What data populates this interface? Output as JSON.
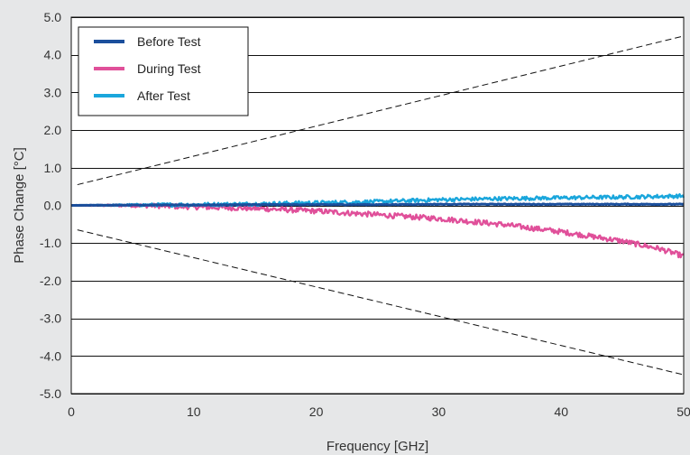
{
  "chart_data": {
    "type": "line",
    "title": "",
    "xlabel": "Frequency [GHz]",
    "ylabel": "Phase Change [°C]",
    "xlim": [
      0,
      50
    ],
    "ylim": [
      -5,
      5
    ],
    "x_ticks": [
      0,
      10,
      20,
      30,
      40,
      50
    ],
    "x_tick_labels": [
      "0",
      "10",
      "20",
      "30",
      "40",
      "50"
    ],
    "y_ticks": [
      5,
      4,
      3,
      2,
      1,
      0,
      -1,
      -2,
      -3,
      -4,
      -5
    ],
    "y_tick_labels": [
      "5.0",
      "4.0",
      "3.0",
      "2.0",
      "1.0",
      "0.0",
      "-1.0",
      "-2.0",
      "-3.0",
      "-4.0",
      "-5.0"
    ],
    "grid": "horizontal",
    "legend_position": "top-left",
    "series": [
      {
        "name": "Before Test",
        "color": "#1b4f9c",
        "x": [
          0,
          5,
          10,
          15,
          20,
          25,
          30,
          35,
          40,
          45,
          50
        ],
        "y": [
          0,
          0.01,
          0.01,
          0.02,
          0.02,
          0.02,
          0.03,
          0.03,
          0.03,
          0.03,
          0.03
        ],
        "noise": 0.01
      },
      {
        "name": "During Test",
        "color": "#e0509a",
        "x": [
          0,
          5,
          8,
          10,
          15,
          20,
          25,
          30,
          35,
          40,
          45,
          48,
          50
        ],
        "y": [
          0,
          0,
          -0.02,
          -0.04,
          -0.08,
          -0.15,
          -0.25,
          -0.35,
          -0.5,
          -0.7,
          -0.95,
          -1.15,
          -1.35
        ],
        "noise": 0.07
      },
      {
        "name": "After Test",
        "color": "#1aa6dc",
        "x": [
          0,
          5,
          10,
          15,
          20,
          25,
          30,
          35,
          40,
          45,
          50
        ],
        "y": [
          0,
          0.01,
          0.02,
          0.04,
          0.07,
          0.1,
          0.15,
          0.18,
          0.2,
          0.22,
          0.25
        ],
        "noise": 0.05
      }
    ],
    "limit_lines": [
      {
        "style": "dashed",
        "color": "#111111",
        "x": [
          0.5,
          50
        ],
        "y": [
          0.55,
          4.5
        ]
      },
      {
        "style": "dashed",
        "color": "#111111",
        "x": [
          0.5,
          50
        ],
        "y": [
          -0.65,
          -4.5
        ]
      }
    ]
  }
}
